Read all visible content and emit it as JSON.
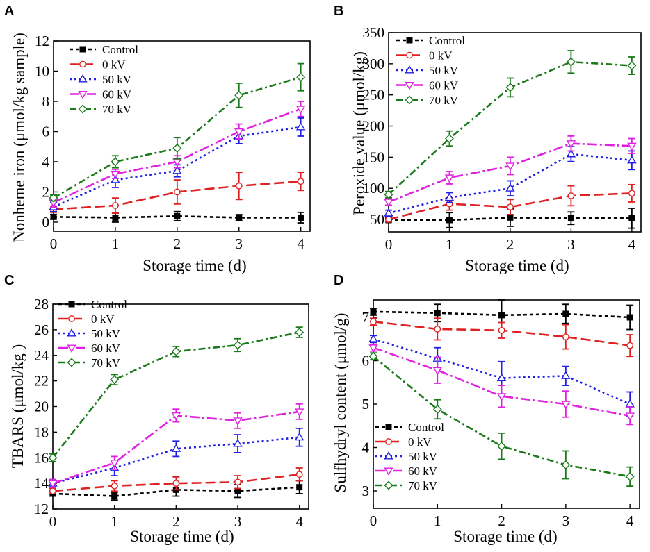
{
  "figure": {
    "colors": {
      "Control": "#000000",
      "0 kV": "#e02020",
      "50 kV": "#1f1fe6",
      "60 kV": "#e020e0",
      "70 kV": "#1a7a1a"
    },
    "markers": {
      "Control": "square",
      "0 kV": "circle",
      "50 kV": "triangle-up",
      "60 kV": "triangle-down",
      "70 kV": "diamond"
    }
  },
  "chart_data": [
    {
      "panel": "A",
      "type": "line",
      "xlabel": "Storage time (d)",
      "ylabel": "Nonheme iron (μmol/kg sample)",
      "x": [
        0,
        1,
        2,
        3,
        4
      ],
      "xlim": [
        0,
        4.15
      ],
      "ylim": [
        -0.6,
        12
      ],
      "yticks": [
        0,
        2,
        4,
        6,
        8,
        10,
        12
      ],
      "xticks": [
        0,
        1,
        2,
        3,
        4
      ],
      "legend_position": "top-left",
      "series": [
        {
          "name": "Control",
          "values": [
            0.35,
            0.3,
            0.4,
            0.3,
            0.3
          ],
          "err": [
            0.15,
            0.3,
            0.3,
            0.2,
            0.35
          ]
        },
        {
          "name": "0 kV",
          "values": [
            0.85,
            1.1,
            2.0,
            2.4,
            2.7
          ],
          "err": [
            0.2,
            0.5,
            0.8,
            0.9,
            0.6
          ]
        },
        {
          "name": "50 kV",
          "values": [
            1.0,
            2.8,
            3.4,
            5.7,
            6.3
          ],
          "err": [
            0.3,
            0.5,
            0.4,
            0.5,
            0.6
          ]
        },
        {
          "name": "60 kV",
          "values": [
            1.3,
            3.2,
            4.0,
            6.0,
            7.5
          ],
          "err": [
            0.3,
            0.3,
            0.4,
            0.5,
            0.5
          ]
        },
        {
          "name": "70 kV",
          "values": [
            1.6,
            4.0,
            4.9,
            8.4,
            9.6
          ],
          "err": [
            0.2,
            0.4,
            0.7,
            0.8,
            0.9
          ]
        }
      ]
    },
    {
      "panel": "B",
      "type": "line",
      "xlabel": "Storage time (d)",
      "ylabel": "Peroxide value (μmol/kg)",
      "x": [
        0,
        1,
        2,
        3,
        4
      ],
      "xlim": [
        0,
        4.15
      ],
      "ylim": [
        30,
        350
      ],
      "yticks": [
        50,
        100,
        150,
        200,
        250,
        300,
        350
      ],
      "xticks": [
        0,
        1,
        2,
        3,
        4
      ],
      "legend_position": "top-left",
      "series": [
        {
          "name": "Control",
          "values": [
            49,
            49,
            53,
            52,
            52
          ],
          "err": [
            3,
            12,
            14,
            10,
            16
          ]
        },
        {
          "name": "0 kV",
          "values": [
            50,
            75,
            70,
            88,
            92
          ],
          "err": [
            4,
            10,
            12,
            16,
            14
          ]
        },
        {
          "name": "50 kV",
          "values": [
            60,
            85,
            100,
            155,
            145
          ],
          "err": [
            5,
            8,
            12,
            12,
            15
          ]
        },
        {
          "name": "60 kV",
          "values": [
            78,
            117,
            136,
            172,
            168
          ],
          "err": [
            5,
            10,
            14,
            12,
            12
          ]
        },
        {
          "name": "70 kV",
          "values": [
            90,
            180,
            262,
            303,
            297
          ],
          "err": [
            5,
            12,
            15,
            18,
            14
          ]
        }
      ]
    },
    {
      "panel": "C",
      "type": "line",
      "xlabel": "Storage time (d)",
      "ylabel": "TBARS (μmol/kg )",
      "x": [
        0,
        1,
        2,
        3,
        4
      ],
      "xlim": [
        0,
        4.15
      ],
      "ylim": [
        12,
        28
      ],
      "yticks": [
        12,
        14,
        16,
        18,
        20,
        22,
        24,
        26,
        28
      ],
      "xticks": [
        0,
        1,
        2,
        3,
        4
      ],
      "legend_position": "top-left",
      "series": [
        {
          "name": "Control",
          "values": [
            13.2,
            13.0,
            13.5,
            13.4,
            13.7
          ],
          "err": [
            0.2,
            0.3,
            0.5,
            0.5,
            0.5
          ]
        },
        {
          "name": "0 kV",
          "values": [
            13.4,
            13.8,
            14.0,
            14.1,
            14.7
          ],
          "err": [
            0.2,
            0.4,
            0.5,
            0.5,
            0.5
          ]
        },
        {
          "name": "50 kV",
          "values": [
            14.0,
            15.2,
            16.7,
            17.1,
            17.6
          ],
          "err": [
            0.3,
            0.6,
            0.6,
            0.7,
            0.7
          ]
        },
        {
          "name": "60 kV",
          "values": [
            14.0,
            15.6,
            19.3,
            18.9,
            19.6
          ],
          "err": [
            0.3,
            0.5,
            0.5,
            0.6,
            0.6
          ]
        },
        {
          "name": "70 kV",
          "values": [
            16.0,
            22.1,
            24.3,
            24.8,
            25.8
          ],
          "err": [
            0.3,
            0.4,
            0.4,
            0.5,
            0.4
          ]
        }
      ]
    },
    {
      "panel": "D",
      "type": "line",
      "xlabel": "Storage time (d)",
      "ylabel": "Sulfhydryl content (μmol/g)",
      "x": [
        0,
        1,
        2,
        3,
        4
      ],
      "xlim": [
        0,
        4.15
      ],
      "ylim": [
        2.6,
        7.4
      ],
      "yticks": [
        3,
        4,
        5,
        6,
        7
      ],
      "xticks": [
        0,
        1,
        2,
        3,
        4
      ],
      "legend_position": "bottom-left",
      "series": [
        {
          "name": "Control",
          "values": [
            7.13,
            7.1,
            7.05,
            7.08,
            7.0
          ],
          "err": [
            0.08,
            0.2,
            0.35,
            0.22,
            0.28
          ]
        },
        {
          "name": "0 kV",
          "values": [
            6.9,
            6.73,
            6.7,
            6.55,
            6.35
          ],
          "err": [
            0.08,
            0.25,
            0.18,
            0.28,
            0.25
          ]
        },
        {
          "name": "50 kV",
          "values": [
            6.5,
            6.05,
            5.6,
            5.65,
            5.0
          ],
          "err": [
            0.08,
            0.25,
            0.38,
            0.22,
            0.28
          ]
        },
        {
          "name": "60 kV",
          "values": [
            6.3,
            5.78,
            5.18,
            5.0,
            4.73
          ],
          "err": [
            0.08,
            0.3,
            0.25,
            0.3,
            0.2
          ]
        },
        {
          "name": "70 kV",
          "values": [
            6.1,
            4.88,
            4.03,
            3.6,
            3.33
          ],
          "err": [
            0.08,
            0.22,
            0.3,
            0.32,
            0.22
          ]
        }
      ]
    }
  ]
}
